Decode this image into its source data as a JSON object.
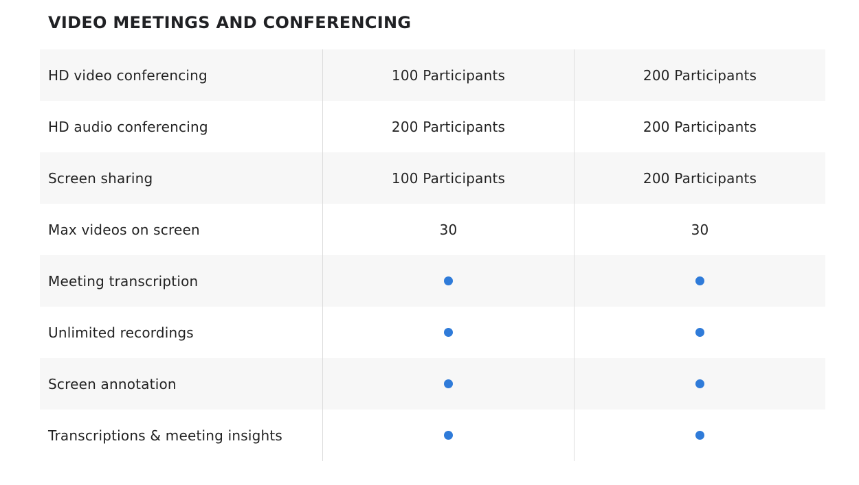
{
  "section": {
    "title": "VIDEO MEETINGS AND CONFERENCING"
  },
  "colors": {
    "included_dot": "#2f7bd9"
  },
  "rows": [
    {
      "feature": "HD video conferencing",
      "plan_1": "100 Participants",
      "plan_2": "200 Participants"
    },
    {
      "feature": "HD audio conferencing",
      "plan_1": "200 Participants",
      "plan_2": "200 Participants"
    },
    {
      "feature": "Screen sharing",
      "plan_1": "100 Participants",
      "plan_2": "200 Participants"
    },
    {
      "feature": "Max videos on screen",
      "plan_1": "30",
      "plan_2": "30"
    },
    {
      "feature": "Meeting transcription",
      "plan_1": "included-dot-icon",
      "plan_2": "included-dot-icon"
    },
    {
      "feature": "Unlimited recordings",
      "plan_1": "included-dot-icon",
      "plan_2": "included-dot-icon"
    },
    {
      "feature": "Screen annotation",
      "plan_1": "included-dot-icon",
      "plan_2": "included-dot-icon"
    },
    {
      "feature": "Transcriptions & meeting insights",
      "plan_1": "included-dot-icon",
      "plan_2": "included-dot-icon"
    }
  ]
}
